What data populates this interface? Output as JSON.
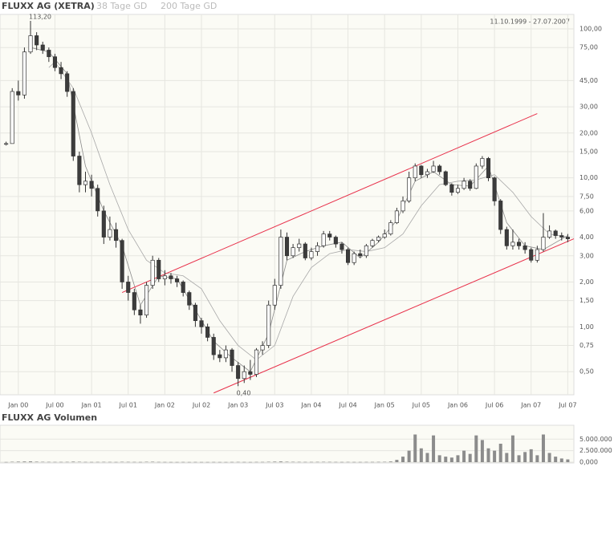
{
  "chart_data": [
    {
      "type": "candlestick",
      "title": "FLUXX AG (XETRA)",
      "date_range": "11.10.1999 - 27.07.2007",
      "log_scale": true,
      "grid": true,
      "x": [
        "1999-11",
        "1999-12",
        "2000-01",
        "2000-02",
        "2000-03",
        "2000-04",
        "2000-05",
        "2000-06",
        "2000-07",
        "2000-08",
        "2000-09",
        "2000-10",
        "2000-11",
        "2000-12",
        "2001-01",
        "2001-02",
        "2001-03",
        "2001-04",
        "2001-05",
        "2001-06",
        "2001-07",
        "2001-08",
        "2001-09",
        "2001-10",
        "2001-11",
        "2001-12",
        "2002-01",
        "2002-02",
        "2002-03",
        "2002-04",
        "2002-05",
        "2002-06",
        "2002-07",
        "2002-08",
        "2002-09",
        "2002-10",
        "2002-11",
        "2002-12",
        "2003-01",
        "2003-02",
        "2003-03",
        "2003-04",
        "2003-05",
        "2003-06",
        "2003-07",
        "2003-08",
        "2003-09",
        "2003-10",
        "2003-11",
        "2003-12",
        "2004-01",
        "2004-02",
        "2004-03",
        "2004-04",
        "2004-05",
        "2004-06",
        "2004-07",
        "2004-08",
        "2004-09",
        "2004-10",
        "2004-11",
        "2004-12",
        "2005-01",
        "2005-02",
        "2005-03",
        "2005-04",
        "2005-05",
        "2005-06",
        "2005-07",
        "2005-08",
        "2005-09",
        "2005-10",
        "2005-11",
        "2005-12",
        "2006-01",
        "2006-02",
        "2006-03",
        "2006-04",
        "2006-05",
        "2006-06",
        "2006-07",
        "2006-08",
        "2006-09",
        "2006-10",
        "2006-11",
        "2006-12",
        "2007-01",
        "2007-02",
        "2007-03",
        "2007-04",
        "2007-05",
        "2007-06",
        "2007-07"
      ],
      "open": [
        17,
        17,
        38,
        36,
        70,
        90,
        78,
        72,
        65,
        55,
        50,
        38,
        14,
        9,
        9.5,
        8.5,
        6,
        4,
        4.5,
        3.8,
        2,
        1.7,
        1.3,
        1.2,
        1.9,
        2.8,
        2.1,
        2.2,
        2.1,
        2,
        1.7,
        1.4,
        1.1,
        1,
        0.85,
        0.65,
        0.62,
        0.7,
        0.55,
        0.45,
        0.5,
        0.48,
        0.7,
        0.75,
        1.4,
        1.9,
        4,
        3,
        3.4,
        3.6,
        2.9,
        3.2,
        3.5,
        4.2,
        4,
        3.6,
        3.3,
        2.7,
        3.1,
        3,
        3.5,
        3.8,
        4,
        4.2,
        5,
        6,
        7,
        10,
        12,
        10.5,
        11,
        12,
        11,
        9,
        8,
        8.5,
        9.5,
        8.5,
        12,
        13.5,
        10,
        7,
        4.5,
        3.5,
        3.7,
        3.5,
        3.3,
        2.8,
        3.3,
        4,
        4.4,
        4.1,
        4
      ],
      "high": [
        17.5,
        40,
        45,
        75,
        113.2,
        95,
        82,
        75,
        68,
        60,
        52,
        40,
        15,
        11,
        10.5,
        9,
        6.5,
        5.5,
        5,
        3.9,
        2.2,
        1.8,
        1.4,
        2,
        3,
        2.9,
        2.4,
        2.3,
        2.2,
        2.05,
        1.75,
        1.45,
        1.15,
        1.05,
        0.9,
        0.7,
        0.75,
        0.72,
        0.58,
        0.55,
        0.6,
        0.72,
        0.8,
        1.5,
        2.1,
        4.5,
        4.3,
        3.6,
        3.9,
        3.7,
        3.4,
        3.7,
        4.4,
        4.4,
        4.1,
        3.7,
        3.4,
        3.2,
        3.3,
        3.6,
        3.9,
        4.1,
        4.5,
        5.2,
        6.3,
        7.5,
        11,
        12.5,
        12.2,
        11.5,
        13,
        12.3,
        11.2,
        9.2,
        9,
        10,
        9.8,
        12.5,
        14,
        13.8,
        10.2,
        7.2,
        4.7,
        4.5,
        3.9,
        3.7,
        3.4,
        3.5,
        5.8,
        4.8,
        4.5,
        4.3,
        4.2
      ],
      "low": [
        16.5,
        17,
        33,
        34,
        68,
        72,
        68,
        60,
        52,
        46,
        35,
        13,
        8,
        8,
        7.5,
        5.5,
        3.6,
        3.8,
        3.4,
        1.8,
        1.5,
        1.2,
        1.05,
        1.15,
        1.8,
        2,
        1.9,
        1.95,
        1.85,
        1.6,
        1.3,
        1,
        0.9,
        0.8,
        0.6,
        0.58,
        0.58,
        0.5,
        0.4,
        0.42,
        0.44,
        0.46,
        0.65,
        0.72,
        1.3,
        1.8,
        2.8,
        2.9,
        3.2,
        2.8,
        2.8,
        3,
        3.4,
        3.8,
        3.4,
        3.1,
        2.6,
        2.6,
        2.9,
        2.9,
        3.4,
        3.7,
        3.9,
        4.1,
        4.9,
        5.8,
        6.8,
        9.5,
        10,
        10,
        10.8,
        10.5,
        8.8,
        7.6,
        7.8,
        8.3,
        8.2,
        8.4,
        11.5,
        9.5,
        6.5,
        4.2,
        3.3,
        3.3,
        3.3,
        3.1,
        2.7,
        2.7,
        3.2,
        3.9,
        3.9,
        3.8,
        3.7
      ],
      "close": [
        17,
        38,
        36,
        70,
        90,
        78,
        72,
        65,
        55,
        50,
        38,
        14,
        9,
        9.5,
        8.5,
        6,
        4,
        4.5,
        3.8,
        2,
        1.7,
        1.3,
        1.2,
        1.9,
        2.8,
        2.1,
        2.2,
        2.1,
        2,
        1.7,
        1.4,
        1.1,
        1,
        0.85,
        0.65,
        0.62,
        0.7,
        0.55,
        0.45,
        0.5,
        0.48,
        0.7,
        0.75,
        1.4,
        1.9,
        4,
        3,
        3.4,
        3.6,
        2.9,
        3.2,
        3.5,
        4.2,
        4,
        3.6,
        3.3,
        2.7,
        3.1,
        3,
        3.5,
        3.8,
        4,
        4.2,
        5,
        6,
        7,
        10,
        12,
        10.5,
        11,
        12,
        11,
        9,
        8,
        8.5,
        9.5,
        8.5,
        12,
        13.5,
        10,
        7,
        4.5,
        3.5,
        3.7,
        3.5,
        3.3,
        2.8,
        3.3,
        4,
        4.4,
        4.1,
        4,
        3.9
      ],
      "series": [
        {
          "name": "38 Tage GD",
          "color": "#8a8a8a",
          "x": [
            "2000-03",
            "2000-06",
            "2000-09",
            "2000-12",
            "2001-03",
            "2001-06",
            "2001-09",
            "2001-12",
            "2002-03",
            "2002-06",
            "2002-09",
            "2002-12",
            "2003-03",
            "2003-06",
            "2003-09",
            "2003-12",
            "2004-03",
            "2004-06",
            "2004-09",
            "2004-12",
            "2005-03",
            "2005-06",
            "2005-09",
            "2005-12",
            "2006-03",
            "2006-06",
            "2006-09",
            "2006-12",
            "2007-03",
            "2007-07"
          ],
          "values": [
            75,
            70,
            50,
            12,
            6,
            3.5,
            1.4,
            2.2,
            2.1,
            1.3,
            0.8,
            0.62,
            0.5,
            0.9,
            2.8,
            3.2,
            3.5,
            3.7,
            2.9,
            3.7,
            5.2,
            9.5,
            11,
            9,
            8.8,
            12,
            5,
            3.5,
            3.3,
            4.1
          ]
        },
        {
          "name": "200 Tage GD",
          "color": "#a8a8a8",
          "x": [
            "2000-06",
            "2000-07",
            "2000-10",
            "2001-01",
            "2001-04",
            "2001-07",
            "2001-10",
            "2002-01",
            "2002-04",
            "2002-07",
            "2002-10",
            "2003-01",
            "2003-04",
            "2003-07",
            "2003-10",
            "2004-01",
            "2004-04",
            "2004-07",
            "2004-10",
            "2005-01",
            "2005-04",
            "2005-07",
            "2005-10",
            "2006-01",
            "2006-04",
            "2006-07",
            "2006-10",
            "2007-01",
            "2007-04",
            "2007-07"
          ],
          "values": [
            55,
            60,
            40,
            20,
            9,
            4.5,
            2.8,
            2.3,
            2.2,
            1.8,
            1.1,
            0.75,
            0.6,
            0.75,
            1.6,
            2.5,
            3.1,
            3.3,
            3.2,
            3.4,
            4.2,
            6.5,
            9,
            9.5,
            9.7,
            10.5,
            8,
            5.5,
            4.2,
            4
          ]
        }
      ],
      "trendlines": [
        {
          "color": "#e8304a",
          "x": [
            "2001-06",
            "2007-02"
          ],
          "values": [
            1.7,
            27
          ]
        },
        {
          "color": "#e8304a",
          "x": [
            "2002-09",
            "2007-08"
          ],
          "values": [
            0.36,
            3.9
          ]
        }
      ],
      "annotations": [
        {
          "text": "113,20",
          "x": "2000-03",
          "value": 113.2
        },
        {
          "text": "0,40",
          "x": "2003-01",
          "value": 0.4
        }
      ],
      "xlim": [
        "1999-10",
        "2007-08"
      ],
      "xticks": [
        {
          "value": "2000-01",
          "label": "Jan 00"
        },
        {
          "value": "2000-07",
          "label": "Jul 00"
        },
        {
          "value": "2001-01",
          "label": "Jan 01"
        },
        {
          "value": "2001-07",
          "label": "Jul 01"
        },
        {
          "value": "2002-01",
          "label": "Jan 02"
        },
        {
          "value": "2002-07",
          "label": "Jul 02"
        },
        {
          "value": "2003-01",
          "label": "Jan 03"
        },
        {
          "value": "2003-07",
          "label": "Jul 03"
        },
        {
          "value": "2004-01",
          "label": "Jan 04"
        },
        {
          "value": "2004-07",
          "label": "Jul 04"
        },
        {
          "value": "2005-01",
          "label": "Jan 05"
        },
        {
          "value": "2005-07",
          "label": "Jul 05"
        },
        {
          "value": "2006-01",
          "label": "Jan 06"
        },
        {
          "value": "2006-07",
          "label": "Jul 06"
        },
        {
          "value": "2007-01",
          "label": "Jan 07"
        },
        {
          "value": "2007-07",
          "label": "Jul 07"
        }
      ],
      "ylim": [
        0.35,
        125
      ],
      "yticks": [
        {
          "value": 100,
          "label": "100,00"
        },
        {
          "value": 75,
          "label": "75,00"
        },
        {
          "value": 45,
          "label": "45,00"
        },
        {
          "value": 30,
          "label": "30,00"
        },
        {
          "value": 20,
          "label": "20,00"
        },
        {
          "value": 15,
          "label": "15,00"
        },
        {
          "value": 10,
          "label": "10,00"
        },
        {
          "value": 7.5,
          "label": "7,50"
        },
        {
          "value": 6,
          "label": "6,00"
        },
        {
          "value": 4,
          "label": "4,00"
        },
        {
          "value": 3,
          "label": "3,00"
        },
        {
          "value": 2,
          "label": "2,00"
        },
        {
          "value": 1.5,
          "label": "1,50"
        },
        {
          "value": 1,
          "label": "1,00"
        },
        {
          "value": 0.75,
          "label": "0,75"
        },
        {
          "value": 0.5,
          "label": "0,50"
        }
      ],
      "up_color": "#ffffff",
      "down_color": "#3c3c3c"
    },
    {
      "type": "bar",
      "title": "FLUXX AG Volumen",
      "color": "#8c8c8c",
      "grid": true,
      "x": [
        "1999-11",
        "1999-12",
        "2000-01",
        "2000-02",
        "2000-03",
        "2000-04",
        "2000-05",
        "2000-06",
        "2000-07",
        "2000-08",
        "2000-09",
        "2000-10",
        "2000-11",
        "2000-12",
        "2001-01",
        "2001-02",
        "2001-03",
        "2001-04",
        "2001-05",
        "2001-06",
        "2001-07",
        "2001-08",
        "2001-09",
        "2001-10",
        "2001-11",
        "2001-12",
        "2002-01",
        "2002-02",
        "2002-03",
        "2002-04",
        "2002-05",
        "2002-06",
        "2002-07",
        "2002-08",
        "2002-09",
        "2002-10",
        "2002-11",
        "2002-12",
        "2003-01",
        "2003-02",
        "2003-03",
        "2003-04",
        "2003-05",
        "2003-06",
        "2003-07",
        "2003-08",
        "2003-09",
        "2003-10",
        "2003-11",
        "2003-12",
        "2004-01",
        "2004-02",
        "2004-03",
        "2004-04",
        "2004-05",
        "2004-06",
        "2004-07",
        "2004-08",
        "2004-09",
        "2004-10",
        "2004-11",
        "2004-12",
        "2005-01",
        "2005-02",
        "2005-03",
        "2005-04",
        "2005-05",
        "2005-06",
        "2005-07",
        "2005-08",
        "2005-09",
        "2005-10",
        "2005-11",
        "2005-12",
        "2006-01",
        "2006-02",
        "2006-03",
        "2006-04",
        "2006-05",
        "2006-06",
        "2006-07",
        "2006-08",
        "2006-09",
        "2006-10",
        "2006-11",
        "2006-12",
        "2007-01",
        "2007-02",
        "2007-03",
        "2007-04",
        "2007-05",
        "2007-06",
        "2007-07"
      ],
      "values": [
        40000,
        90000,
        120000,
        150000,
        180000,
        110000,
        80000,
        70000,
        60000,
        60000,
        70000,
        120000,
        90000,
        60000,
        50000,
        60000,
        70000,
        60000,
        50000,
        80000,
        70000,
        60000,
        50000,
        90000,
        100000,
        60000,
        50000,
        40000,
        40000,
        50000,
        40000,
        50000,
        40000,
        40000,
        50000,
        40000,
        40000,
        50000,
        60000,
        50000,
        40000,
        60000,
        60000,
        90000,
        120000,
        160000,
        100000,
        80000,
        70000,
        60000,
        60000,
        70000,
        80000,
        70000,
        60000,
        50000,
        60000,
        50000,
        50000,
        60000,
        60000,
        70000,
        80000,
        150000,
        500000,
        1200000,
        2500000,
        6000000,
        3000000,
        2000000,
        5800000,
        1500000,
        1200000,
        1000000,
        1500000,
        2500000,
        1800000,
        5800000,
        4800000,
        3000000,
        2500000,
        4000000,
        2000000,
        5800000,
        1500000,
        2200000,
        2800000,
        1500000,
        6000000,
        2000000,
        1200000,
        800000,
        600000
      ],
      "xlim": [
        "1999-10",
        "2007-08"
      ],
      "ylim": [
        0,
        8000000
      ],
      "yticks": [
        {
          "value": 5000000,
          "label": "5.000.000"
        },
        {
          "value": 2500000,
          "label": "2.500.000"
        },
        {
          "value": 0,
          "label": "0,000"
        }
      ]
    }
  ]
}
